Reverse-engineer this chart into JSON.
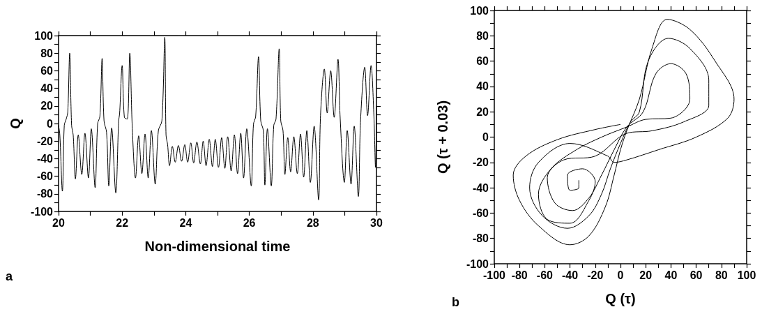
{
  "chart_data": [
    {
      "type": "line",
      "xlabel": "Non-dimensional time",
      "ylabel": "Q",
      "annotations": [
        "a"
      ],
      "xlim": [
        20,
        30
      ],
      "ylim": [
        -100,
        100
      ],
      "xticks": [
        20,
        {
          "value": 21,
          "label": null
        },
        22,
        {
          "value": 23,
          "label": null
        },
        24,
        {
          "value": 25,
          "label": null
        },
        26,
        {
          "value": 27,
          "label": null
        },
        28,
        {
          "value": 29,
          "label": null
        },
        30
      ],
      "yticks": [
        -100,
        {
          "value": -90,
          "label": null
        },
        -80,
        {
          "value": -70,
          "label": null
        },
        -60,
        {
          "value": -50,
          "label": null
        },
        -40,
        {
          "value": -30,
          "label": null
        },
        -20,
        {
          "value": -10,
          "label": null
        },
        0,
        {
          "value": 10,
          "label": null
        },
        20,
        {
          "value": 30,
          "label": null
        },
        40,
        {
          "value": 50,
          "label": null
        },
        60,
        {
          "value": 70,
          "label": null
        },
        80,
        {
          "value": 90,
          "label": null
        },
        100
      ],
      "grid": false,
      "marker": "none",
      "line_style": "solid",
      "series": [
        {
          "color": "#000000",
          "x": [
            20,
            20.04,
            20.12,
            20.18,
            20.24,
            20.29,
            20.35,
            20.41,
            20.46,
            20.53,
            20.62,
            20.73,
            20.83,
            20.94,
            21.03,
            21.15,
            21.23,
            21.3,
            21.37,
            21.43,
            21.51,
            21.58,
            21.67,
            21.8,
            21.89,
            21.92,
            22,
            22.07,
            22.16,
            22.24,
            22.32,
            22.42,
            22.52,
            22.62,
            22.72,
            22.82,
            22.92,
            23.04,
            23.14,
            23.25,
            23.34,
            23.38,
            23.43,
            23.49,
            23.58,
            23.67,
            23.77,
            23.87,
            23.97,
            24.06,
            24.16,
            24.25,
            24.35,
            24.46,
            24.55,
            24.64,
            24.74,
            24.84,
            24.93,
            25.03,
            25.13,
            25.23,
            25.32,
            25.43,
            25.53,
            25.63,
            25.73,
            25.82,
            25.92,
            26.06,
            26.13,
            26.2,
            26.29,
            26.36,
            26.44,
            26.49,
            26.57,
            26.69,
            26.77,
            26.84,
            26.94,
            26.99,
            27.06,
            27.12,
            27.21,
            27.3,
            27.4,
            27.51,
            27.61,
            27.71,
            27.81,
            27.92,
            28.04,
            28.18,
            28.24,
            28.36,
            28.45,
            28.56,
            28.67,
            28.79,
            28.86,
            28.99,
            29.08,
            29.2,
            29.3,
            29.43,
            29.5,
            29.63,
            29.72,
            29.83,
            29.92,
            29.97,
            30
          ],
          "values": [
            -2,
            -13,
            -77,
            -2,
            5,
            13,
            80,
            -2,
            -13,
            -63,
            -13,
            -58,
            -11,
            -62,
            -6,
            -73,
            0,
            8,
            74,
            3,
            -10,
            -71,
            -5,
            -79,
            3,
            11,
            66,
            7,
            5,
            80,
            -6,
            -62,
            -14,
            -57,
            -12,
            -62,
            -8,
            -69,
            -8,
            3,
            98,
            -13,
            -24,
            -48,
            -26,
            -44,
            -25,
            -43,
            -24,
            -44,
            -22,
            -45,
            -21,
            -46,
            -20,
            -48,
            -18,
            -49,
            -18,
            -50,
            -16,
            -51,
            -15,
            -54,
            -13,
            -57,
            -11,
            -62,
            -6,
            -71,
            -1,
            8,
            76,
            3,
            -8,
            -70,
            -6,
            -71,
            -2,
            5,
            85,
            3,
            -8,
            -58,
            -16,
            -55,
            -15,
            -57,
            -12,
            -61,
            -8,
            -67,
            -3,
            -87,
            9,
            62,
            12,
            60,
            7,
            73,
            5,
            -67,
            -8,
            -69,
            -3,
            -83,
            4,
            64,
            9,
            66,
            8,
            -50,
            20
          ]
        }
      ]
    },
    {
      "type": "line",
      "xlabel": "Q (τ)",
      "ylabel": "Q (τ + 0.03)",
      "annotations": [
        "b"
      ],
      "xlim": [
        -100,
        100
      ],
      "ylim": [
        -100,
        100
      ],
      "xticks": [
        -100,
        {
          "value": -90,
          "label": null
        },
        -80,
        {
          "value": -70,
          "label": null
        },
        -60,
        {
          "value": -50,
          "label": null
        },
        -40,
        {
          "value": -30,
          "label": null
        },
        -20,
        {
          "value": -10,
          "label": null
        },
        0,
        {
          "value": 10,
          "label": null
        },
        20,
        {
          "value": 30,
          "label": null
        },
        40,
        {
          "value": 50,
          "label": null
        },
        60,
        {
          "value": 70,
          "label": null
        },
        80,
        {
          "value": 90,
          "label": null
        },
        100
      ],
      "yticks": [
        -100,
        {
          "value": -90,
          "label": null
        },
        -80,
        {
          "value": -70,
          "label": null
        },
        -60,
        {
          "value": -50,
          "label": null
        },
        -40,
        {
          "value": -30,
          "label": null
        },
        -20,
        {
          "value": -10,
          "label": null
        },
        0,
        {
          "value": 10,
          "label": null
        },
        20,
        {
          "value": 30,
          "label": null
        },
        40,
        {
          "value": 50,
          "label": null
        },
        60,
        {
          "value": 70,
          "label": null
        },
        80,
        {
          "value": 90,
          "label": null
        },
        100
      ],
      "grid": false,
      "marker": "none",
      "line_style": "solid",
      "series": [
        {
          "color": "#000000",
          "x": [
            0,
            -20,
            -50,
            -75,
            -85,
            -80,
            -65,
            -40,
            -25,
            -12,
            -5,
            0,
            5,
            15,
            25,
            37,
            55,
            75,
            90,
            85,
            60,
            30,
            5,
            -5,
            -10,
            -40,
            -65,
            -72,
            -62,
            -42,
            -25,
            -15,
            -8,
            0,
            8,
            15,
            22,
            38,
            55,
            70,
            70,
            50,
            25,
            5,
            -20,
            -45,
            -58,
            -52,
            -38,
            -25,
            -15,
            -5,
            5,
            18,
            28,
            40,
            52,
            55,
            40,
            20,
            5,
            -15,
            -35,
            -55,
            -65,
            -58,
            -40,
            -25,
            -20,
            -30,
            -42,
            -40,
            -33,
            -33
          ],
          "values": [
            10,
            6,
            -2,
            -15,
            -30,
            -50,
            -70,
            -85,
            -78,
            -55,
            -30,
            -10,
            5,
            30,
            70,
            93,
            85,
            60,
            30,
            15,
            0,
            -10,
            -18,
            -20,
            -15,
            -5,
            -20,
            -40,
            -62,
            -72,
            -62,
            -45,
            -25,
            -5,
            12,
            20,
            60,
            78,
            70,
            45,
            25,
            12,
            5,
            3,
            -15,
            -18,
            -32,
            -52,
            -58,
            -48,
            -30,
            -10,
            8,
            20,
            50,
            58,
            50,
            30,
            15,
            14,
            8,
            0,
            -10,
            -25,
            -45,
            -65,
            -68,
            -50,
            -35,
            -25,
            -30,
            -42,
            -40,
            -34
          ]
        }
      ]
    }
  ]
}
